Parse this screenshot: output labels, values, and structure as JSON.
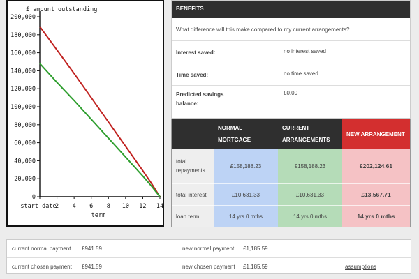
{
  "chart_data": {
    "type": "line",
    "ylabel": "£ amount outstanding",
    "xlabel": "term",
    "x_ticks": [
      "start date",
      "2",
      "4",
      "6",
      "8",
      "10",
      "12",
      "14"
    ],
    "y_ticks": [
      "200,000",
      "180,000",
      "160,000",
      "140,000",
      "120,000",
      "100,000",
      "80,000",
      "60,000",
      "40,000",
      "20,000",
      "0"
    ],
    "xlim": [
      0,
      14
    ],
    "ylim": [
      0,
      200000
    ],
    "series": [
      {
        "color": "#c0211f",
        "x": [
          0,
          2,
          4,
          6,
          8,
          10,
          12,
          13,
          14
        ],
        "y": [
          189000,
          163000,
          137000,
          110000,
          83000,
          56000,
          29000,
          15000,
          0
        ]
      },
      {
        "color": "#2e9e2e",
        "x": [
          0,
          2,
          4,
          6,
          8,
          10,
          12,
          13,
          14
        ],
        "y": [
          148000,
          127000,
          107000,
          86000,
          65000,
          44000,
          23000,
          12000,
          0
        ]
      }
    ]
  },
  "benefits": {
    "title": "BENEFITS",
    "question": "What difference will this make compared to my current arrangements?",
    "rows": [
      {
        "label": "Interest saved:",
        "value": "no interest saved"
      },
      {
        "label": "Time saved:",
        "value": "no time saved"
      },
      {
        "label": "Predicted savings balance:",
        "value": "£0.00"
      }
    ]
  },
  "comparison": {
    "headers": [
      "NORMAL MORTGAGE",
      "CURRENT ARRANGEMENTS",
      "NEW ARRANGEMENT"
    ],
    "rows": [
      {
        "label": "total repayments",
        "values": [
          "£158,188.23",
          "£158,188.23",
          "£202,124.61"
        ]
      },
      {
        "label": "total interest",
        "values": [
          "£10,631.33",
          "£10,631.33",
          "£13,567.71"
        ]
      },
      {
        "label": "loan term",
        "values": [
          "14 yrs 0 mths",
          "14 yrs 0 mths",
          "14 yrs 0 mths"
        ]
      }
    ],
    "colors": {
      "normal": "#bdd3f5",
      "current": "#b5dcb8",
      "new": "#f5c2c5",
      "new_header": "#d32f2f"
    }
  },
  "summary": {
    "current_normal_label": "current normal payment",
    "current_normal_value": "£941.59",
    "new_normal_label": "new normal payment",
    "new_normal_value": "£1,185.59",
    "current_chosen_label": "current chosen payment",
    "current_chosen_value": "£941.59",
    "new_chosen_label": "new chosen payment",
    "new_chosen_value": "£1,185.59",
    "assumptions_link": "assumptions"
  }
}
